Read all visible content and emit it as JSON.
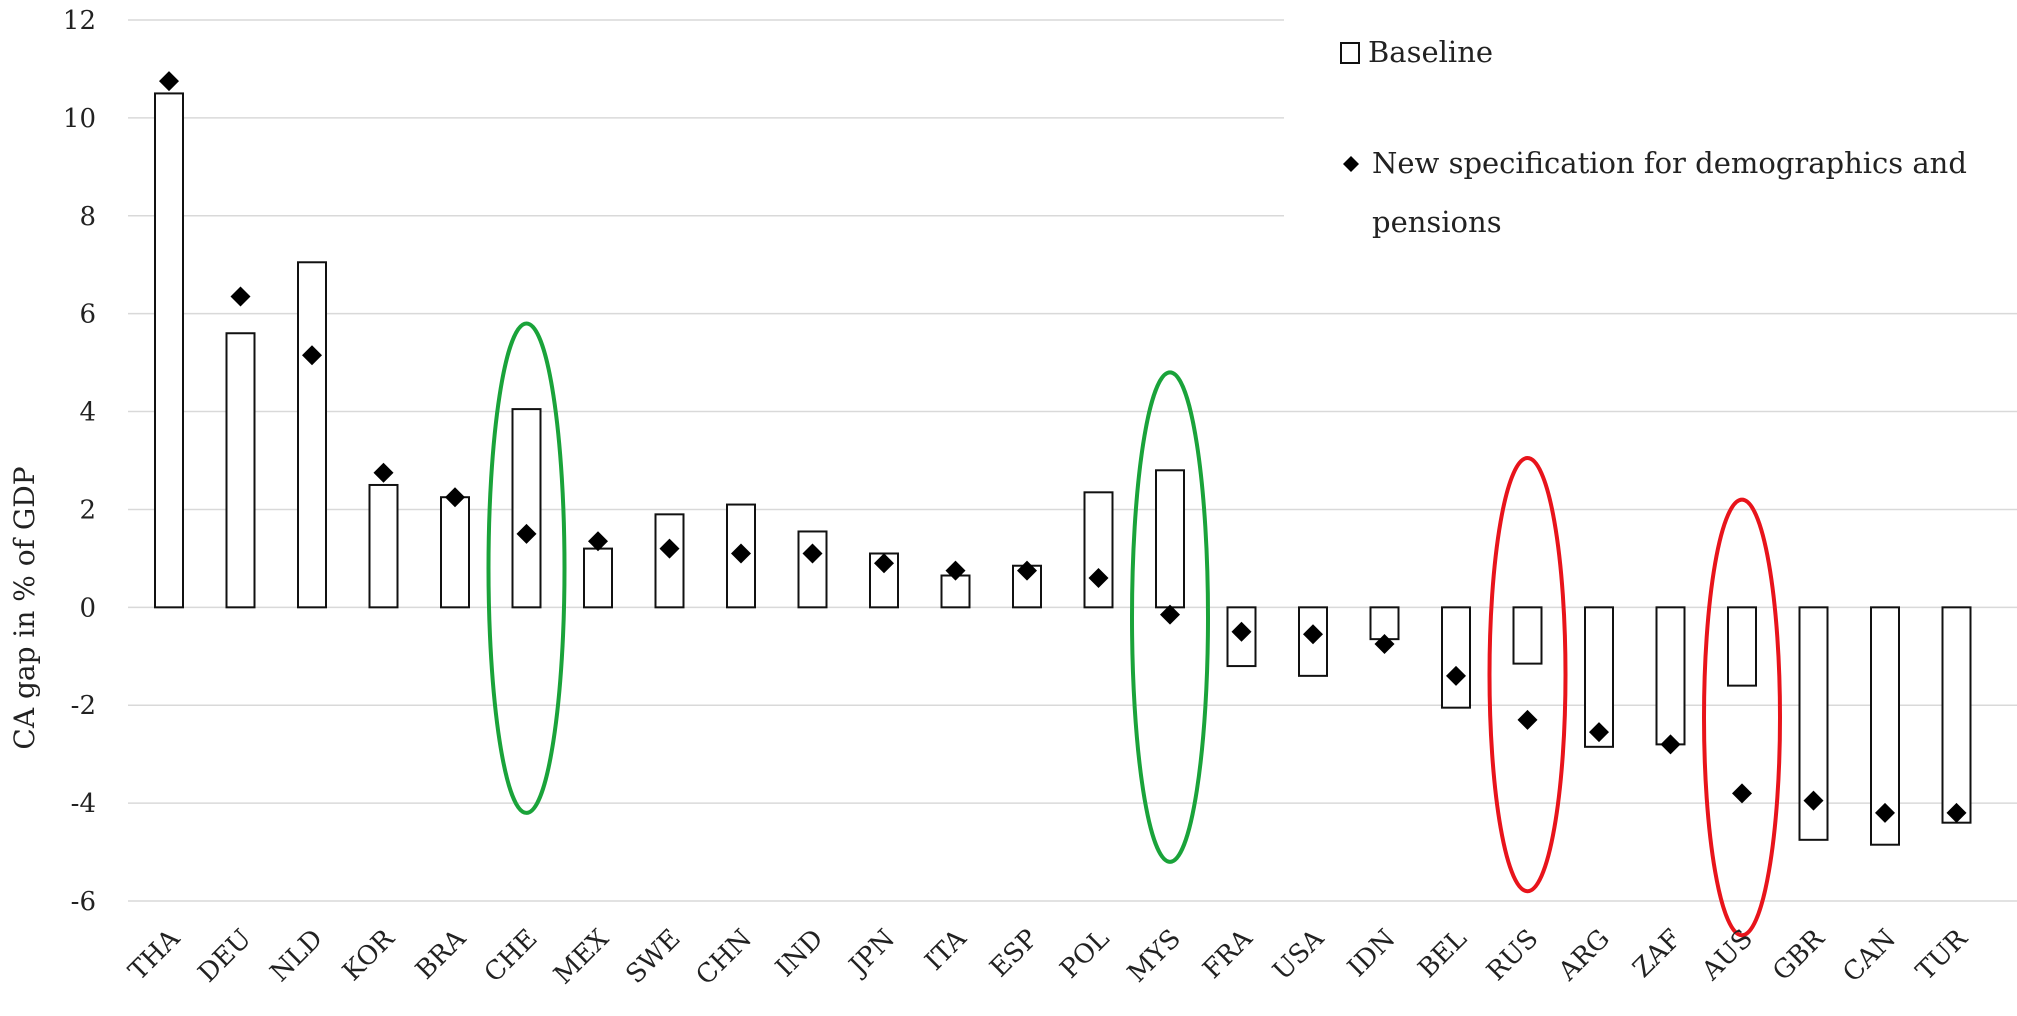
{
  "chart_data": {
    "type": "bar",
    "ylabel": "CA gap in % of GDP",
    "ylim": [
      -6,
      12
    ],
    "yticks": [
      -6,
      -4,
      -2,
      0,
      2,
      4,
      6,
      8,
      10,
      12
    ],
    "grid": true,
    "legend_position": "top-right",
    "categories": [
      "THA",
      "DEU",
      "NLD",
      "KOR",
      "BRA",
      "CHE",
      "MEX",
      "SWE",
      "CHN",
      "IND",
      "JPN",
      "ITA",
      "ESP",
      "POL",
      "MYS",
      "FRA",
      "USA",
      "IDN",
      "BEL",
      "RUS",
      "ARG",
      "ZAF",
      "AUS",
      "GBR",
      "CAN",
      "TUR"
    ],
    "series": [
      {
        "name": "Baseline",
        "kind": "bar",
        "values": [
          10.5,
          5.6,
          7.05,
          2.5,
          2.25,
          4.05,
          1.2,
          1.9,
          2.1,
          1.55,
          1.1,
          0.65,
          0.85,
          2.35,
          2.8,
          -1.2,
          -1.4,
          -0.65,
          -2.05,
          -1.15,
          -2.85,
          -2.8,
          -1.6,
          -4.75,
          -4.85,
          -4.4
        ]
      },
      {
        "name": "New specification for demographics and pensions",
        "kind": "marker",
        "values": [
          10.75,
          6.35,
          5.15,
          2.75,
          2.25,
          1.5,
          1.35,
          1.2,
          1.1,
          1.1,
          0.9,
          0.75,
          0.75,
          0.6,
          -0.15,
          -0.5,
          -0.55,
          -0.75,
          -1.4,
          -2.3,
          -2.55,
          -2.8,
          -3.8,
          -3.95,
          -4.2,
          -4.2
        ]
      }
    ],
    "highlights": [
      {
        "category": "CHE",
        "color": "#1aa33a",
        "range": [
          -4.2,
          5.8
        ]
      },
      {
        "category": "MYS",
        "color": "#1aa33a",
        "range": [
          -5.2,
          4.8
        ]
      },
      {
        "category": "RUS",
        "color": "#e8141b",
        "range": [
          -5.8,
          3.05
        ]
      },
      {
        "category": "AUS",
        "color": "#e8141b",
        "range": [
          -6.7,
          2.2
        ]
      }
    ]
  },
  "legend": {
    "baseline_label": "Baseline",
    "newspec_label_line1": "New specification for demographics and",
    "newspec_label_line2": "pensions"
  }
}
